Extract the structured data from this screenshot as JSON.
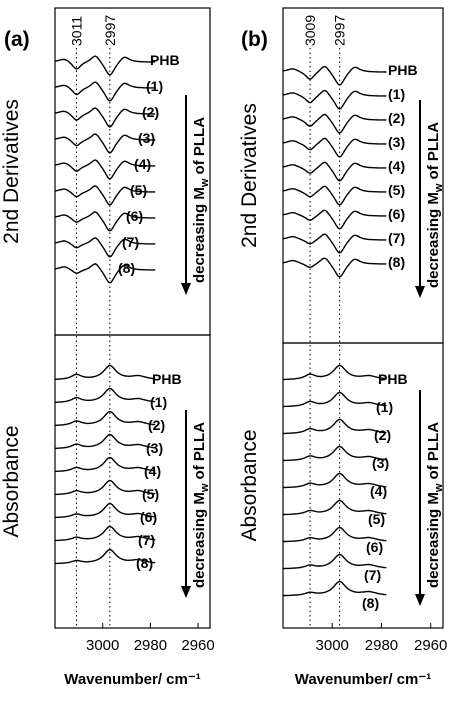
{
  "chart_data": [
    {
      "panel_label": "(a)",
      "type": "line",
      "x_ticks": [
        3000,
        2980,
        2960
      ],
      "xlim": [
        3020,
        2955
      ],
      "xlabel": "Wavenumber/ cm⁻¹",
      "marked_peaks": [
        3011,
        2997
      ],
      "arrow_text": "decreasing M",
      "arrow_sub": "w",
      "arrow_tail": " of PLLA",
      "subplots": [
        {
          "ylabel": "2nd Derivatives",
          "series": [
            "PHB",
            "(1)",
            "(2)",
            "(3)",
            "(4)",
            "(5)",
            "(6)",
            "(7)",
            "(8)"
          ]
        },
        {
          "ylabel": "Absorbance",
          "series": [
            "PHB",
            "(1)",
            "(2)",
            "(3)",
            "(4)",
            "(5)",
            "(6)",
            "(7)",
            "(8)"
          ]
        }
      ]
    },
    {
      "panel_label": "(b)",
      "type": "line",
      "x_ticks": [
        3000,
        2980,
        2960
      ],
      "xlim": [
        3020,
        2955
      ],
      "xlabel": "Wavenumber/ cm⁻¹",
      "marked_peaks": [
        3009,
        2997
      ],
      "arrow_text": "decreasing M",
      "arrow_sub": "w",
      "arrow_tail": " of PLLA",
      "subplots": [
        {
          "ylabel": "2nd Derivatives",
          "series": [
            "PHB",
            "(1)",
            "(2)",
            "(3)",
            "(4)",
            "(5)",
            "(6)",
            "(7)",
            "(8)"
          ]
        },
        {
          "ylabel": "Absorbance",
          "series": [
            "PHB",
            "(1)",
            "(2)",
            "(3)",
            "(4)",
            "(5)",
            "(6)",
            "(7)",
            "(8)"
          ]
        }
      ]
    }
  ]
}
